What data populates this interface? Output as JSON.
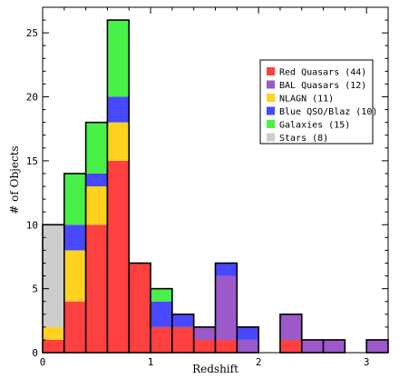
{
  "chart_data": {
    "type": "bar",
    "stacked": true,
    "title": "",
    "xlabel": "Redshift",
    "ylabel": "# of Objects",
    "xlim": [
      0,
      3.2
    ],
    "ylim": [
      0,
      27
    ],
    "bin_width": 0.2,
    "x_ticks": [
      "0",
      "1",
      "2",
      "3"
    ],
    "y_ticks": [
      "0",
      "5",
      "10",
      "15",
      "20",
      "25"
    ],
    "bin_starts": [
      0.0,
      0.2,
      0.4,
      0.6,
      0.8,
      1.0,
      1.2,
      1.4,
      1.6,
      1.8,
      2.0,
      2.2,
      2.4,
      2.6,
      2.8,
      3.0
    ],
    "series": [
      {
        "name": "Red Quasars (44)",
        "color": "#ff4040",
        "values": [
          1,
          4,
          10,
          15,
          7,
          2,
          2,
          1,
          1,
          0,
          0,
          1,
          0,
          0,
          0,
          0
        ]
      },
      {
        "name": "BAL Quasars (12)",
        "color": "#9b59c9",
        "values": [
          0,
          0,
          0,
          0,
          0,
          0,
          0,
          1,
          5,
          1,
          0,
          2,
          1,
          1,
          0,
          1
        ]
      },
      {
        "name": "NLAGN (11)",
        "color": "#ffd21f",
        "values": [
          1,
          4,
          3,
          3,
          0,
          0,
          0,
          0,
          0,
          0,
          0,
          0,
          0,
          0,
          0,
          0
        ]
      },
      {
        "name": "Blue QSO/Blaz (10)",
        "color": "#4848ff",
        "values": [
          0,
          2,
          1,
          2,
          0,
          2,
          1,
          0,
          1,
          1,
          0,
          0,
          0,
          0,
          0,
          0
        ]
      },
      {
        "name": "Galaxies (15)",
        "color": "#48f048",
        "values": [
          0,
          4,
          4,
          6,
          0,
          1,
          0,
          0,
          0,
          0,
          0,
          0,
          0,
          0,
          0,
          0
        ]
      },
      {
        "name": "Stars (8)",
        "color": "#cccccc",
        "values": [
          8,
          0,
          0,
          0,
          0,
          0,
          0,
          0,
          0,
          0,
          0,
          0,
          0,
          0,
          0,
          0
        ]
      }
    ],
    "legend": "top-right",
    "grid": false
  }
}
